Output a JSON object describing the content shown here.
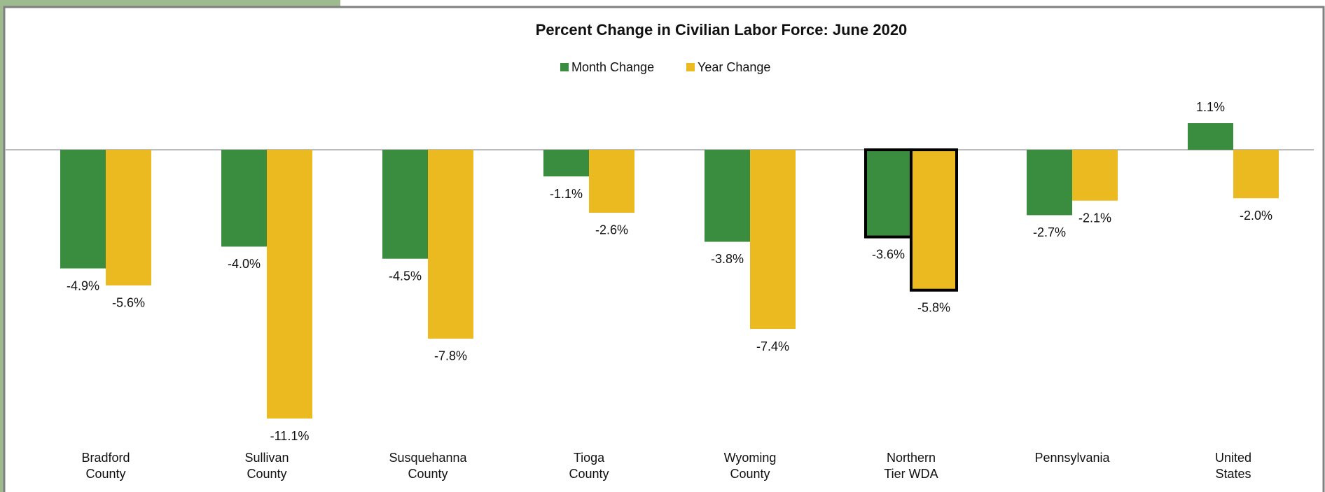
{
  "chart_data": {
    "type": "bar",
    "title": "Percent Change in Civilian Labor Force: June 2020",
    "categories": [
      "Bradford\nCounty",
      "Sullivan\nCounty",
      "Susquehanna\nCounty",
      "Tioga\nCounty",
      "Wyoming\nCounty",
      "Northern\nTier WDA",
      "Pennsylvania",
      "United\nStates"
    ],
    "series": [
      {
        "name": "Month Change",
        "color": "#3a8c3f",
        "values": [
          -4.9,
          -4.0,
          -4.5,
          -1.1,
          -3.8,
          -3.6,
          -2.7,
          1.1
        ],
        "value_labels": [
          "-4.9%",
          "-4.0%",
          "-4.5%",
          "-1.1%",
          "-3.8%",
          "-3.6%",
          "-2.7%",
          "1.1%"
        ]
      },
      {
        "name": "Year Change",
        "color": "#ebb920",
        "values": [
          -5.6,
          -11.1,
          -7.8,
          -2.6,
          -7.4,
          -5.8,
          -2.1,
          -2.0
        ],
        "value_labels": [
          "-5.6%",
          "-11.1%",
          "-7.8%",
          "-2.6%",
          "-7.4%",
          "-5.8%",
          "-2.1%",
          "-2.0%"
        ]
      }
    ],
    "legend": "top",
    "highlight_index": 5
  }
}
